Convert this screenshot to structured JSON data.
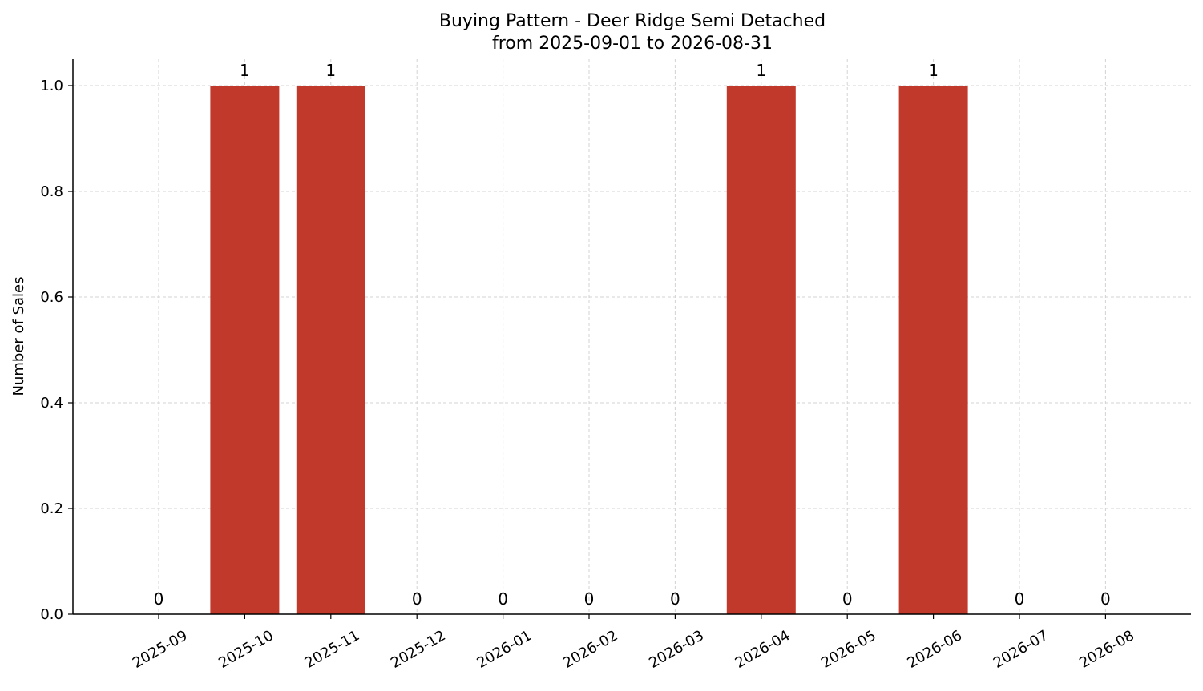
{
  "chart_data": {
    "type": "bar",
    "title": "Buying Pattern - Deer Ridge Semi Detached",
    "subtitle": "from 2025-09-01 to 2026-08-31",
    "xlabel": "",
    "ylabel": "Number of Sales",
    "categories": [
      "2025-09",
      "2025-10",
      "2025-11",
      "2025-12",
      "2026-01",
      "2026-02",
      "2026-03",
      "2026-04",
      "2026-05",
      "2026-06",
      "2026-07",
      "2026-08"
    ],
    "values": [
      0,
      1,
      1,
      0,
      0,
      0,
      0,
      1,
      0,
      1,
      0,
      0
    ],
    "data_labels": [
      "0",
      "1",
      "1",
      "0",
      "0",
      "0",
      "0",
      "1",
      "0",
      "1",
      "0",
      "0"
    ],
    "yticks": [
      "0.0",
      "0.2",
      "0.4",
      "0.6",
      "0.8",
      "1.0"
    ],
    "ylim": [
      0,
      1.05
    ],
    "grid": true,
    "legend": "none",
    "bar_color": "#c0392b"
  }
}
